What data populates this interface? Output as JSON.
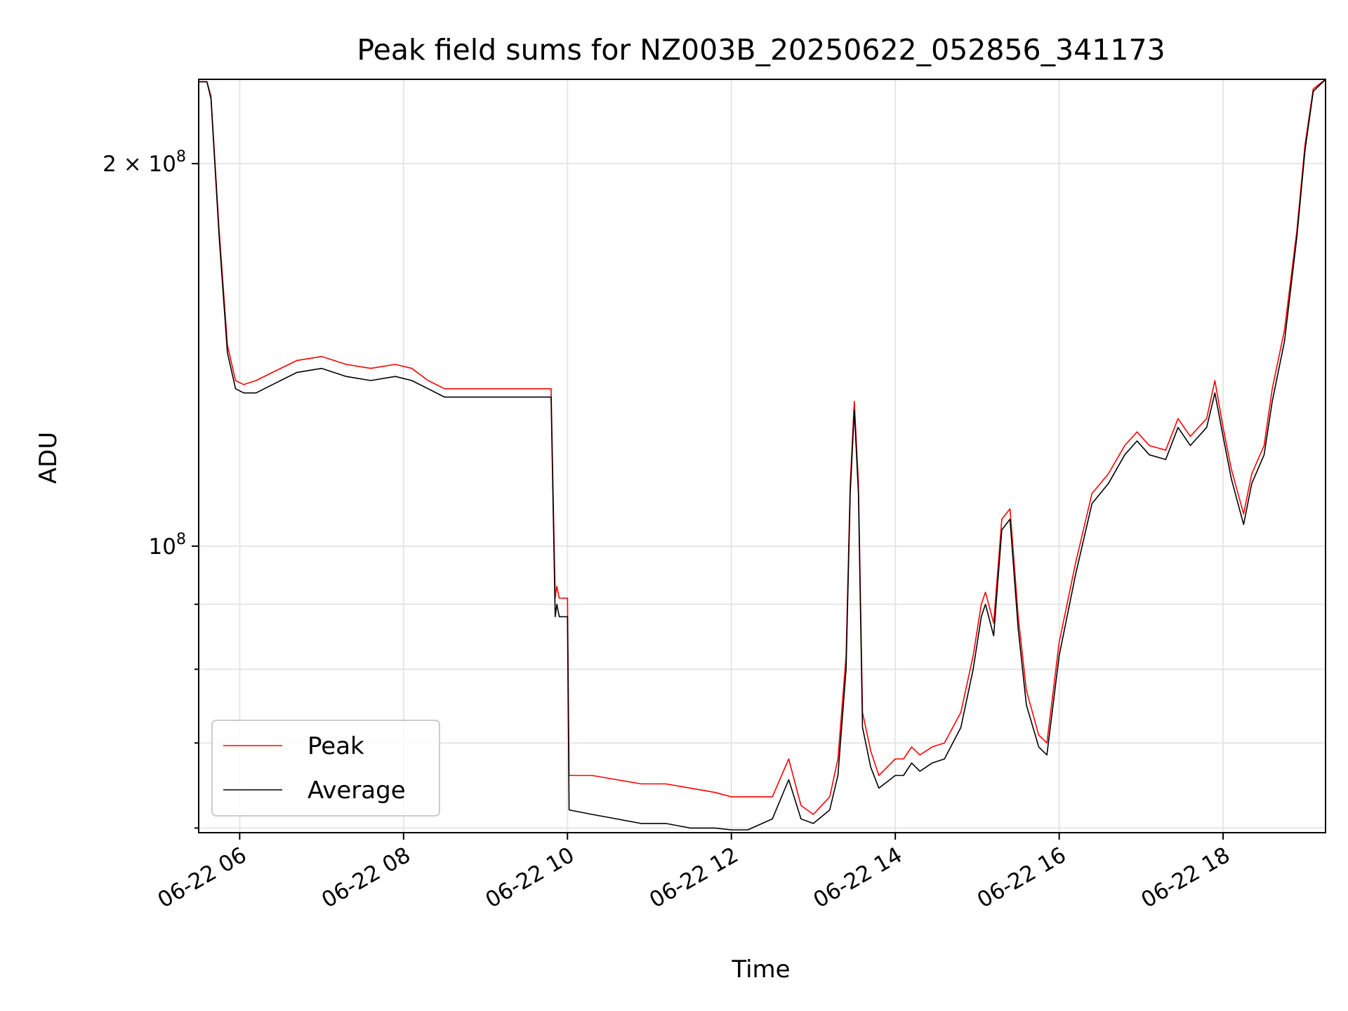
{
  "chart_data": {
    "type": "line",
    "title": "Peak field sums for NZ003B_20250622_052856_341173",
    "xlabel": "Time",
    "ylabel": "ADU",
    "x_unit": "hours",
    "xlim": [
      5.5,
      19.25
    ],
    "ylim": [
      59500000,
      233000000
    ],
    "yscale": "log",
    "grid": true,
    "legend_position": "lower-left",
    "x_ticks": [
      {
        "value": 6,
        "label": "06-22 06"
      },
      {
        "value": 8,
        "label": "06-22 08"
      },
      {
        "value": 10,
        "label": "06-22 10"
      },
      {
        "value": 12,
        "label": "06-22 12"
      },
      {
        "value": 14,
        "label": "06-22 14"
      },
      {
        "value": 16,
        "label": "06-22 16"
      },
      {
        "value": 18,
        "label": "06-22 18"
      }
    ],
    "y_major_ticks": [
      {
        "value": 100000000,
        "base": "10",
        "exp": "8"
      },
      {
        "value": 200000000,
        "base": "2 × 10",
        "exp": "8"
      }
    ],
    "y_minor_ticks": [
      60000000,
      70000000,
      80000000,
      90000000
    ],
    "x": [
      5.5,
      5.6,
      5.65,
      5.75,
      5.85,
      5.95,
      6.05,
      6.2,
      6.4,
      6.7,
      7.0,
      7.3,
      7.6,
      7.9,
      8.1,
      8.3,
      8.5,
      8.8,
      9.0,
      9.2,
      9.5,
      9.8,
      9.85,
      9.87,
      9.9,
      10.0,
      10.02,
      10.3,
      10.6,
      10.9,
      11.2,
      11.5,
      11.8,
      12.0,
      12.2,
      12.5,
      12.7,
      12.85,
      13.0,
      13.2,
      13.3,
      13.4,
      13.45,
      13.5,
      13.55,
      13.6,
      13.7,
      13.8,
      14.0,
      14.1,
      14.2,
      14.3,
      14.45,
      14.6,
      14.8,
      14.95,
      15.05,
      15.1,
      15.2,
      15.3,
      15.4,
      15.5,
      15.6,
      15.75,
      15.85,
      16.0,
      16.2,
      16.4,
      16.6,
      16.8,
      16.95,
      17.1,
      17.3,
      17.45,
      17.6,
      17.8,
      17.9,
      18.0,
      18.1,
      18.25,
      18.35,
      18.5,
      18.6,
      18.75,
      18.9,
      19.0,
      19.1,
      19.25
    ],
    "series": [
      {
        "name": "Average",
        "color": "#000000",
        "values": [
          232000000,
          232000000,
          225000000,
          175000000,
          142000000,
          133000000,
          132000000,
          132000000,
          134000000,
          137000000,
          138000000,
          136000000,
          135000000,
          136000000,
          135000000,
          133000000,
          131000000,
          131000000,
          131000000,
          131000000,
          131000000,
          131000000,
          88000000,
          90000000,
          88000000,
          88000000,
          62000000,
          61500000,
          61000000,
          60500000,
          60500000,
          60000000,
          60000000,
          59800000,
          59800000,
          61000000,
          65500000,
          61000000,
          60500000,
          62000000,
          66000000,
          80000000,
          110000000,
          128000000,
          110000000,
          72000000,
          67000000,
          64500000,
          66000000,
          66000000,
          67500000,
          66500000,
          67500000,
          68000000,
          72000000,
          80000000,
          88000000,
          90000000,
          85000000,
          103000000,
          105000000,
          86000000,
          75000000,
          69500000,
          68500000,
          82000000,
          95000000,
          108000000,
          112000000,
          118000000,
          121000000,
          118000000,
          117000000,
          124000000,
          120000000,
          124000000,
          132000000,
          122000000,
          113000000,
          104000000,
          112000000,
          118000000,
          130000000,
          145000000,
          175000000,
          205000000,
          228000000,
          233000000
        ]
      },
      {
        "name": "Peak",
        "color": "#ff0000",
        "values": [
          232000000,
          232000000,
          226000000,
          177000000,
          144000000,
          135000000,
          134000000,
          135000000,
          137000000,
          140000000,
          141000000,
          139000000,
          138000000,
          139000000,
          138000000,
          135000000,
          133000000,
          133000000,
          133000000,
          133000000,
          133000000,
          133000000,
          91000000,
          93000000,
          91000000,
          91000000,
          66000000,
          66000000,
          65500000,
          65000000,
          65000000,
          64500000,
          64000000,
          63500000,
          63500000,
          63500000,
          68000000,
          62500000,
          61500000,
          63500000,
          68000000,
          82000000,
          112000000,
          130000000,
          112000000,
          74000000,
          69000000,
          66000000,
          68000000,
          68000000,
          69500000,
          68500000,
          69500000,
          70000000,
          74000000,
          82000000,
          90000000,
          92000000,
          87000000,
          105000000,
          107000000,
          88000000,
          77000000,
          71000000,
          70000000,
          84000000,
          97000000,
          110000000,
          114000000,
          120000000,
          123000000,
          120000000,
          119000000,
          126000000,
          122000000,
          126000000,
          135000000,
          124000000,
          115000000,
          106000000,
          114000000,
          120000000,
          133000000,
          148000000,
          177000000,
          207000000,
          229000000,
          233000000
        ]
      }
    ]
  }
}
